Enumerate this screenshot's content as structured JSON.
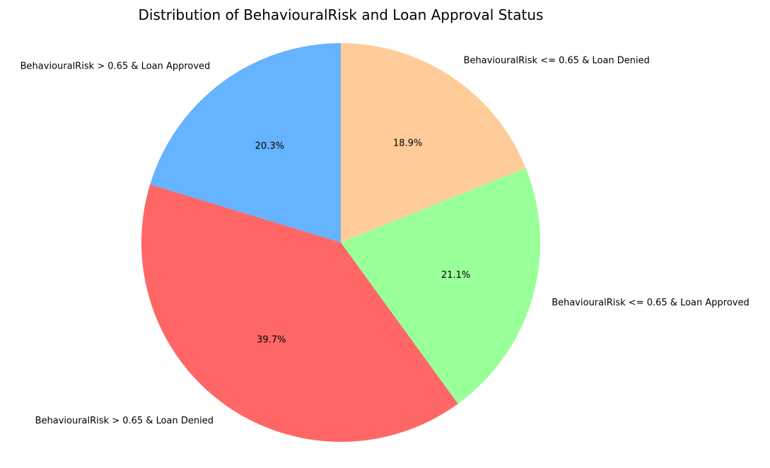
{
  "chart_data": {
    "type": "pie",
    "title": "Distribution of BehaviouralRisk and Loan Approval Status",
    "start_angle_deg": 90,
    "direction": "counterclockwise",
    "legend": "none",
    "slices": [
      {
        "label": "BehaviouralRisk > 0.65 & Loan Approved",
        "value": 20.3,
        "pct_label": "20.3%",
        "color": "#66b3ff"
      },
      {
        "label": "BehaviouralRisk > 0.65 & Loan Denied",
        "value": 39.7,
        "pct_label": "39.7%",
        "color": "#ff6666"
      },
      {
        "label": "BehaviouralRisk <= 0.65 & Loan Approved",
        "value": 21.1,
        "pct_label": "21.1%",
        "color": "#99ff99"
      },
      {
        "label": "BehaviouralRisk <= 0.65 & Loan Denied",
        "value": 18.9,
        "pct_label": "18.9%",
        "color": "#ffcc99"
      }
    ]
  }
}
